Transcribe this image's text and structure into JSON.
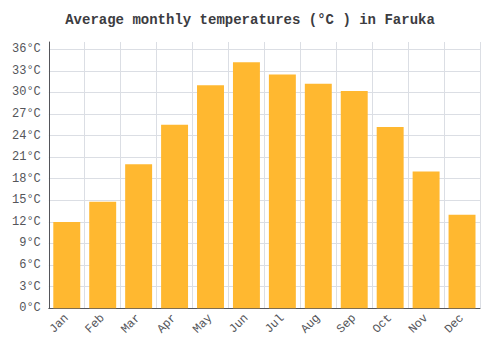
{
  "chart_data": {
    "type": "bar",
    "title": "Average monthly temperatures (°C ) in Faruka",
    "categories": [
      "Jan",
      "Feb",
      "Mar",
      "Apr",
      "May",
      "Jun",
      "Jul",
      "Aug",
      "Sep",
      "Oct",
      "Nov",
      "Dec"
    ],
    "values": [
      12,
      14.8,
      20,
      25.5,
      31,
      34.2,
      32.5,
      31.2,
      30.2,
      25.2,
      19,
      13
    ],
    "color": "#FFB830",
    "ylim": [
      0,
      37
    ],
    "yticks": [
      {
        "value": 0,
        "label": "0°C"
      },
      {
        "value": 3,
        "label": "3°C"
      },
      {
        "value": 6,
        "label": "6°C"
      },
      {
        "value": 9,
        "label": "9°C"
      },
      {
        "value": 12,
        "label": "12°C"
      },
      {
        "value": 15,
        "label": "15°C"
      },
      {
        "value": 18,
        "label": "18°C"
      },
      {
        "value": 21,
        "label": "21°C"
      },
      {
        "value": 24,
        "label": "24°C"
      },
      {
        "value": 27,
        "label": "27°C"
      },
      {
        "value": 30,
        "label": "30°C"
      },
      {
        "value": 33,
        "label": "33°C"
      },
      {
        "value": 36,
        "label": "36°C"
      }
    ],
    "grid": true
  }
}
